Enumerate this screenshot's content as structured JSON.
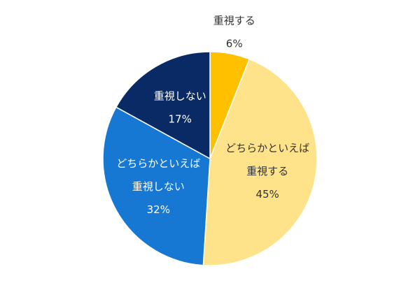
{
  "chart_data": {
    "type": "pie",
    "title": "",
    "start_angle_deg": 0,
    "direction": "clockwise",
    "slices": [
      {
        "label_lines": [
          "重視する"
        ],
        "value": 6,
        "value_label": "6%",
        "color": "#FFC000",
        "label_color": "#333333",
        "label_position": "outside"
      },
      {
        "label_lines": [
          "どちらかといえば",
          "重視する"
        ],
        "value": 45,
        "value_label": "45%",
        "color": "#FFE38A",
        "label_color": "#333333",
        "label_position": "inside"
      },
      {
        "label_lines": [
          "どちらかといえば",
          "重視しない"
        ],
        "value": 32,
        "value_label": "32%",
        "color": "#1778D3",
        "label_color": "#ffffff",
        "label_position": "inside"
      },
      {
        "label_lines": [
          "重視しない"
        ],
        "value": 17,
        "value_label": "17%",
        "color": "#0A2A66",
        "label_color": "#ffffff",
        "label_position": "inside"
      }
    ]
  }
}
